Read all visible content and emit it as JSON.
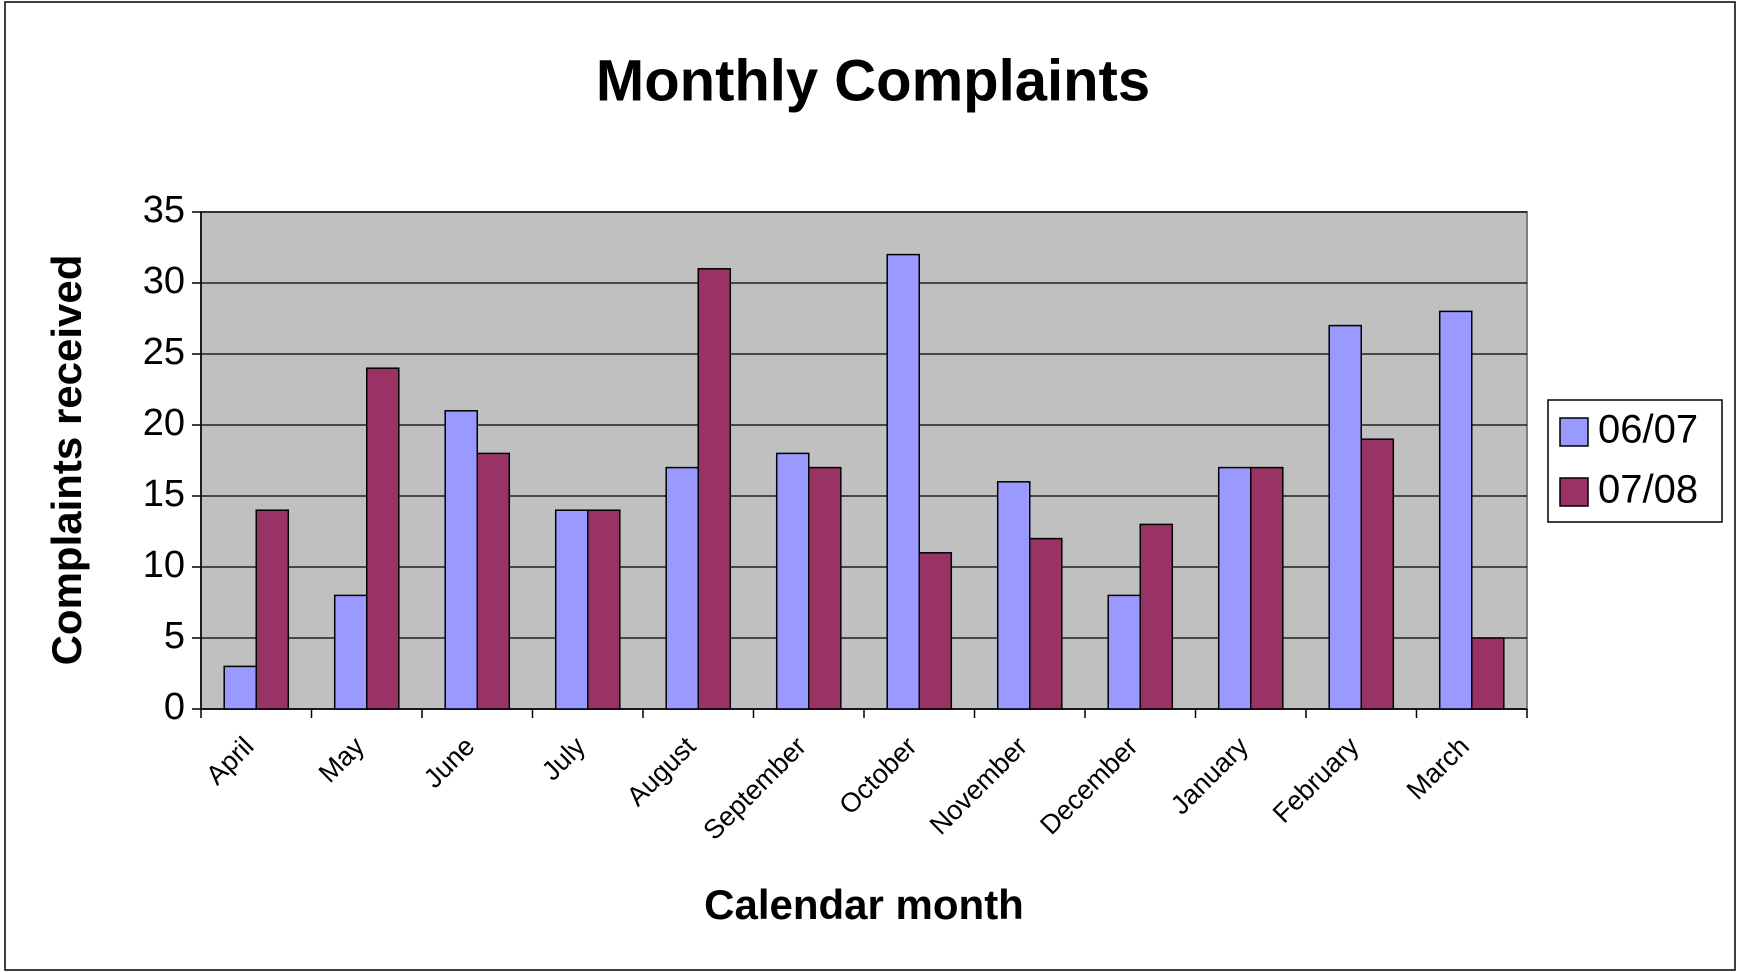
{
  "chart_data": {
    "type": "bar",
    "title": "Monthly Complaints",
    "x_label": "Calendar month",
    "y_label": "Complaints received",
    "categories": [
      "April",
      "May",
      "June",
      "July",
      "August",
      "September",
      "October",
      "November",
      "December",
      "January",
      "February",
      "March"
    ],
    "series": [
      {
        "name": "06/07",
        "color": "#9999ff",
        "values": [
          3,
          8,
          21,
          14,
          17,
          18,
          32,
          16,
          8,
          17,
          27,
          28
        ]
      },
      {
        "name": "07/08",
        "color": "#993366",
        "values": [
          14,
          24,
          18,
          14,
          31,
          17,
          11,
          12,
          13,
          17,
          19,
          5
        ]
      }
    ],
    "ylim": [
      0,
      35
    ],
    "yticks": [
      0,
      5,
      10,
      15,
      20,
      25,
      30,
      35
    ],
    "grid": true,
    "legend": "right"
  }
}
